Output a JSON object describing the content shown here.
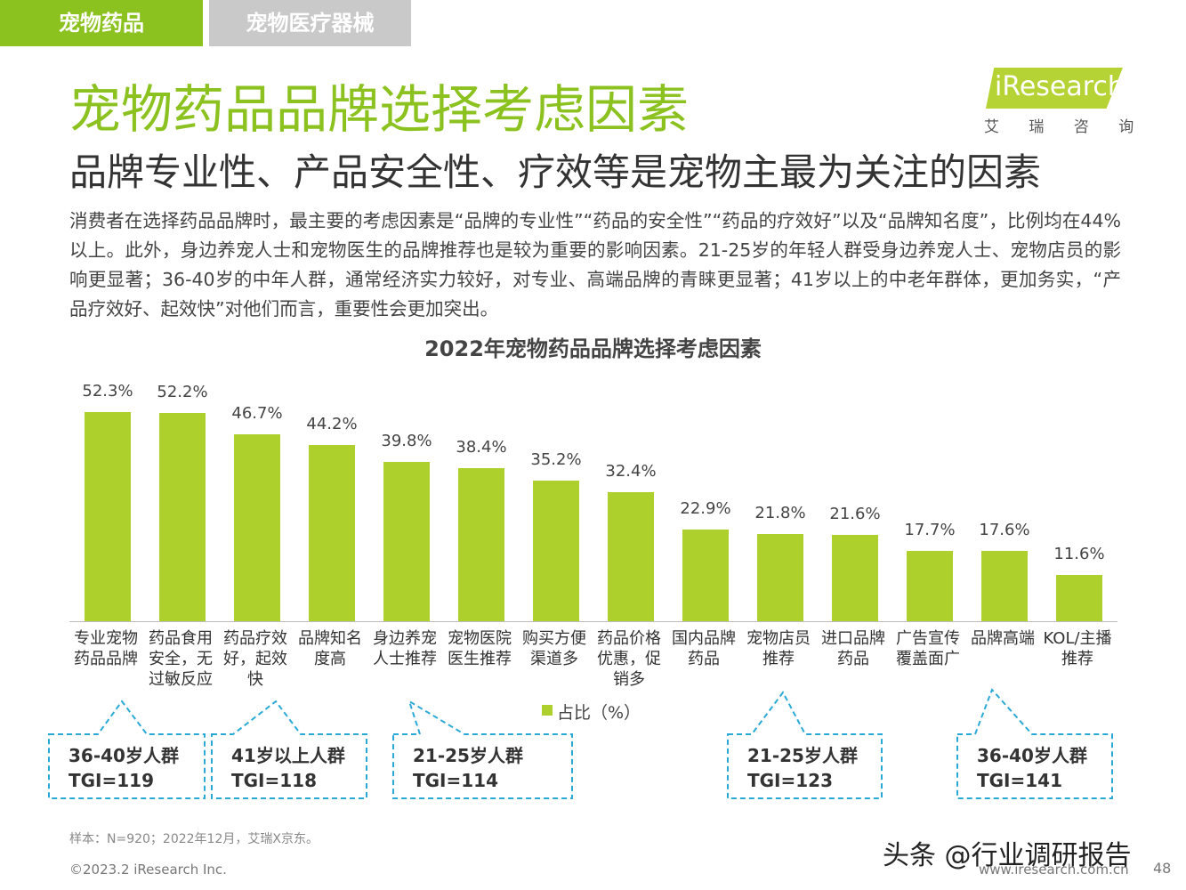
{
  "tabs": [
    "宠物药品",
    "宠物医疗器械"
  ],
  "logo": {
    "brand": "iResearch",
    "sub": "艾 瑞 咨 询"
  },
  "header": {
    "title": "宠物药品品牌选择考虑因素",
    "subtitle": "品牌专业性、产品安全性、疗效等是宠物主最为关注的因素"
  },
  "paragraph": "消费者在选择药品品牌时，最主要的考虑因素是“品牌的专业性”“药品的安全性”“药品的疗效好”以及“品牌知名度”，比例均在44%以上。此外，身边养宠人士和宠物医生的品牌推荐也是较为重要的影响因素。21-25岁的年轻人群受身边养宠人士、宠物店员的影响更显著；36-40岁的中年人群，通常经济实力较好，对专业、高端品牌的青睐更显著；41岁以上的中老年群体，更加务实，“产品疗效好、起效快”对他们而言，重要性会更加突出。",
  "chart_data": {
    "type": "bar",
    "title": "2022年宠物药品品牌选择考虑因素",
    "categories": [
      "专业宠物药品品牌",
      "药品食用安全，无过敏反应",
      "药品疗效好，起效快",
      "品牌知名度高",
      "身边养宠人士推荐",
      "宠物医院医生推荐",
      "购买方便渠道多",
      "药品价格优惠，促销多",
      "国内品牌药品",
      "宠物店员推荐",
      "进口品牌药品",
      "广告宣传覆盖面广",
      "品牌高端",
      "KOL/主播推荐"
    ],
    "series": [
      {
        "name": "占比（%）",
        "color": "#aed02c",
        "values": [
          52.3,
          52.2,
          46.7,
          44.2,
          39.8,
          38.4,
          35.2,
          32.4,
          22.9,
          21.8,
          21.6,
          17.7,
          17.6,
          11.6
        ],
        "value_labels": [
          "52.3%",
          "52.2%",
          "46.7%",
          "44.2%",
          "39.8%",
          "38.4%",
          "35.2%",
          "32.4%",
          "22.9%",
          "21.8%",
          "21.6%",
          "17.7%",
          "17.6%",
          "11.6%"
        ]
      }
    ],
    "annotations": [
      {
        "group": "36-40岁人群",
        "tgi": "TGI=119"
      },
      {
        "group": "41岁以上人群",
        "tgi": "TGI=118"
      },
      {
        "group": "21-25岁人群",
        "tgi": "TGI=114"
      },
      {
        "group": "21-25岁人群",
        "tgi": "TGI=123"
      },
      {
        "group": "36-40岁人群",
        "tgi": "TGI=141"
      }
    ]
  },
  "footer": {
    "source": "样本：N=920；2022年12月，艾瑞X京东。",
    "copyright": "©2023.2 iResearch Inc.",
    "website": "www.iresearch.com.cn",
    "page": "48",
    "watermark": "头条 @行业调研报告"
  }
}
